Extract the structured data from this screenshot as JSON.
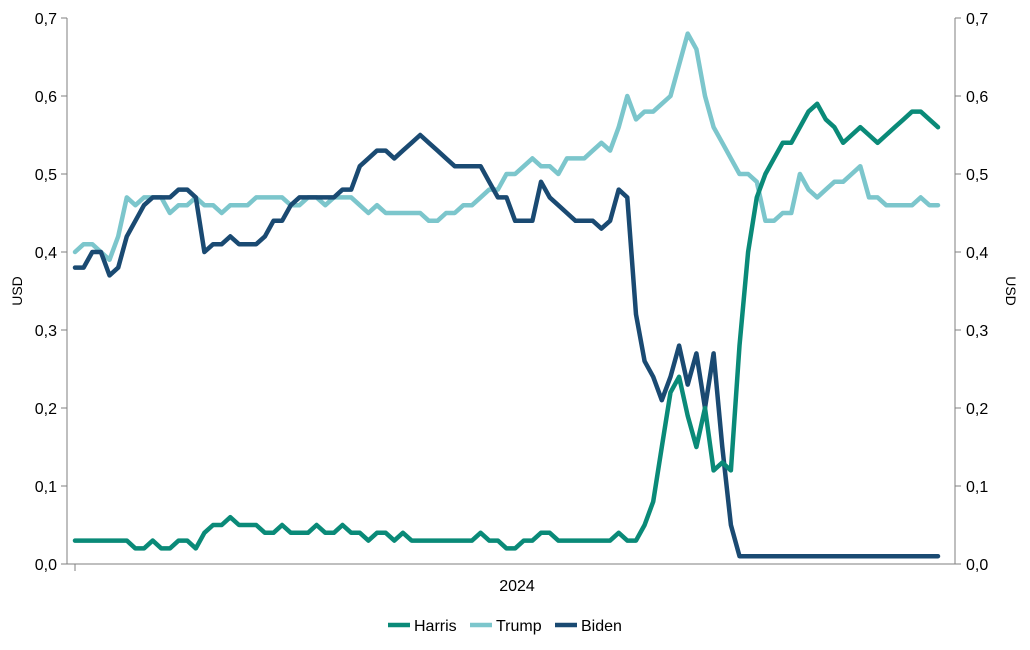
{
  "chart_data": {
    "type": "line",
    "title": "",
    "xlabel": "",
    "ylabel_left": "USD",
    "ylabel_right": "USD",
    "x_tick_labels": [
      "2024"
    ],
    "ylim": [
      0,
      0.7
    ],
    "y_ticks": [
      "0,0",
      "0,1",
      "0,2",
      "0,3",
      "0,4",
      "0,5",
      "0,6",
      "0,7"
    ],
    "grid": false,
    "legend_position": "bottom",
    "x": [
      0,
      1,
      2,
      3,
      4,
      5,
      6,
      7,
      8,
      9,
      10,
      11,
      12,
      13,
      14,
      15,
      16,
      17,
      18,
      19,
      20,
      21,
      22,
      23,
      24,
      25,
      26,
      27,
      28,
      29,
      30,
      31,
      32,
      33,
      34,
      35,
      36,
      37,
      38,
      39,
      40,
      41,
      42,
      43,
      44,
      45,
      46,
      47,
      48,
      49,
      50,
      51,
      52,
      53,
      54,
      55,
      56,
      57,
      58,
      59,
      60,
      61,
      62,
      63,
      64,
      65,
      66,
      67,
      68,
      69,
      70,
      71,
      72,
      73,
      74,
      75,
      76,
      77,
      78,
      79,
      80,
      81,
      82,
      83,
      84,
      85,
      86,
      87,
      88,
      89,
      90,
      91,
      92,
      93,
      94,
      95,
      96,
      97,
      98,
      99,
      100
    ],
    "series": [
      {
        "name": "Harris",
        "color": "#0a8a78",
        "values": [
          0.03,
          0.03,
          0.03,
          0.03,
          0.03,
          0.03,
          0.03,
          0.02,
          0.02,
          0.03,
          0.02,
          0.02,
          0.03,
          0.03,
          0.02,
          0.04,
          0.05,
          0.05,
          0.06,
          0.05,
          0.05,
          0.05,
          0.04,
          0.04,
          0.05,
          0.04,
          0.04,
          0.04,
          0.05,
          0.04,
          0.04,
          0.05,
          0.04,
          0.04,
          0.03,
          0.04,
          0.04,
          0.03,
          0.04,
          0.03,
          0.03,
          0.03,
          0.03,
          0.03,
          0.03,
          0.03,
          0.03,
          0.04,
          0.03,
          0.03,
          0.02,
          0.02,
          0.03,
          0.03,
          0.04,
          0.04,
          0.03,
          0.03,
          0.03,
          0.03,
          0.03,
          0.03,
          0.03,
          0.04,
          0.03,
          0.03,
          0.05,
          0.08,
          0.15,
          0.22,
          0.24,
          0.19,
          0.15,
          0.2,
          0.12,
          0.13,
          0.12,
          0.28,
          0.4,
          0.47,
          0.5,
          0.52,
          0.54,
          0.54,
          0.56,
          0.58,
          0.59,
          0.57,
          0.56,
          0.54,
          0.55,
          0.56,
          0.55,
          0.54,
          0.55,
          0.56,
          0.57,
          0.58,
          0.58,
          0.57,
          0.56
        ]
      },
      {
        "name": "Trump",
        "color": "#7cc6cc",
        "values": [
          0.4,
          0.41,
          0.41,
          0.4,
          0.39,
          0.42,
          0.47,
          0.46,
          0.47,
          0.47,
          0.47,
          0.45,
          0.46,
          0.46,
          0.47,
          0.46,
          0.46,
          0.45,
          0.46,
          0.46,
          0.46,
          0.47,
          0.47,
          0.47,
          0.47,
          0.46,
          0.46,
          0.47,
          0.47,
          0.46,
          0.47,
          0.47,
          0.47,
          0.46,
          0.45,
          0.46,
          0.45,
          0.45,
          0.45,
          0.45,
          0.45,
          0.44,
          0.44,
          0.45,
          0.45,
          0.46,
          0.46,
          0.47,
          0.48,
          0.48,
          0.5,
          0.5,
          0.51,
          0.52,
          0.51,
          0.51,
          0.5,
          0.52,
          0.52,
          0.52,
          0.53,
          0.54,
          0.53,
          0.56,
          0.6,
          0.57,
          0.58,
          0.58,
          0.59,
          0.6,
          0.64,
          0.68,
          0.66,
          0.6,
          0.56,
          0.54,
          0.52,
          0.5,
          0.5,
          0.49,
          0.44,
          0.44,
          0.45,
          0.45,
          0.5,
          0.48,
          0.47,
          0.48,
          0.49,
          0.49,
          0.5,
          0.51,
          0.47,
          0.47,
          0.46,
          0.46,
          0.46,
          0.46,
          0.47,
          0.46,
          0.46
        ]
      },
      {
        "name": "Biden",
        "color": "#1a4a72",
        "values": [
          0.38,
          0.38,
          0.4,
          0.4,
          0.37,
          0.38,
          0.42,
          0.44,
          0.46,
          0.47,
          0.47,
          0.47,
          0.48,
          0.48,
          0.47,
          0.4,
          0.41,
          0.41,
          0.42,
          0.41,
          0.41,
          0.41,
          0.42,
          0.44,
          0.44,
          0.46,
          0.47,
          0.47,
          0.47,
          0.47,
          0.47,
          0.48,
          0.48,
          0.51,
          0.52,
          0.53,
          0.53,
          0.52,
          0.53,
          0.54,
          0.55,
          0.54,
          0.53,
          0.52,
          0.51,
          0.51,
          0.51,
          0.51,
          0.49,
          0.47,
          0.47,
          0.44,
          0.44,
          0.44,
          0.49,
          0.47,
          0.46,
          0.45,
          0.44,
          0.44,
          0.44,
          0.43,
          0.44,
          0.48,
          0.47,
          0.32,
          0.26,
          0.24,
          0.21,
          0.24,
          0.28,
          0.23,
          0.27,
          0.2,
          0.27,
          0.15,
          0.05,
          0.01,
          0.01,
          0.01,
          0.01,
          0.01,
          0.01,
          0.01,
          0.01,
          0.01,
          0.01,
          0.01,
          0.01,
          0.01,
          0.01,
          0.01,
          0.01,
          0.01,
          0.01,
          0.01,
          0.01,
          0.01,
          0.01,
          0.01,
          0.01
        ]
      }
    ]
  }
}
